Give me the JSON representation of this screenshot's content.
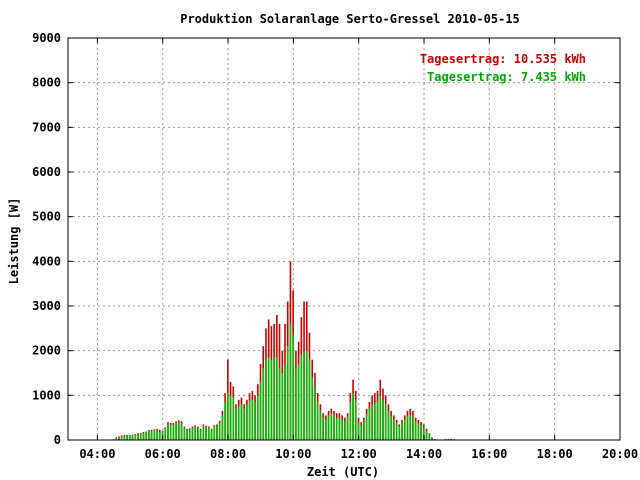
{
  "chart_data": {
    "type": "bar",
    "title": "Produktion Solaranlage Serto-Gressel 2010-05-15",
    "xlabel": "Zeit (UTC)",
    "ylabel": "Leistung [W]",
    "ylim": [
      0,
      9000
    ],
    "xlim_hours": [
      3.1,
      20.0
    ],
    "grid": true,
    "y_ticks": [
      "0",
      "1000",
      "2000",
      "3000",
      "4000",
      "5000",
      "6000",
      "7000",
      "8000",
      "9000"
    ],
    "x_ticks": [
      {
        "hour": 4,
        "label": "04:00"
      },
      {
        "hour": 6,
        "label": "06:00"
      },
      {
        "hour": 8,
        "label": "08:00"
      },
      {
        "hour": 10,
        "label": "10:00"
      },
      {
        "hour": 12,
        "label": "12:00"
      },
      {
        "hour": 14,
        "label": "14:00"
      },
      {
        "hour": 16,
        "label": "16:00"
      },
      {
        "hour": 18,
        "label": "18:00"
      },
      {
        "hour": 20,
        "label": "20:00"
      }
    ],
    "legend_position": "top-right",
    "sample_interval_min": 5,
    "start_time": "04:30",
    "series": [
      {
        "name": "Tagesertrag: 10.535 kWh",
        "color": "#cc0000",
        "values": [
          20,
          60,
          80,
          100,
          110,
          110,
          110,
          120,
          130,
          150,
          160,
          180,
          190,
          220,
          230,
          240,
          250,
          230,
          210,
          280,
          400,
          380,
          380,
          420,
          440,
          420,
          300,
          250,
          260,
          300,
          330,
          300,
          250,
          350,
          320,
          300,
          250,
          330,
          350,
          430,
          650,
          1050,
          1800,
          1300,
          1200,
          800,
          900,
          950,
          800,
          900,
          1050,
          1100,
          1000,
          1250,
          1700,
          2100,
          2500,
          2700,
          2550,
          2600,
          2800,
          2600,
          2000,
          2600,
          3100,
          4000,
          3350,
          2000,
          2200,
          2750,
          3100,
          3100,
          2400,
          1800,
          1500,
          1050,
          800,
          600,
          550,
          650,
          700,
          650,
          600,
          600,
          550,
          500,
          600,
          1050,
          1350,
          1100,
          500,
          400,
          500,
          700,
          850,
          1000,
          1050,
          1100,
          1350,
          1150,
          1000,
          800,
          650,
          550,
          450,
          350,
          450,
          550,
          650,
          700,
          650,
          500,
          450,
          400,
          350,
          250,
          150,
          60,
          20,
          0,
          0,
          0,
          20,
          25,
          25,
          20,
          0
        ]
      },
      {
        "name": "Tagesertrag: 7.435 kWh",
        "color": "#00bb00",
        "values": [
          15,
          45,
          60,
          75,
          85,
          90,
          95,
          105,
          115,
          135,
          145,
          160,
          170,
          200,
          210,
          215,
          225,
          205,
          190,
          255,
          350,
          340,
          340,
          380,
          400,
          380,
          270,
          225,
          235,
          270,
          300,
          270,
          225,
          315,
          290,
          270,
          225,
          300,
          315,
          380,
          550,
          850,
          1050,
          1000,
          950,
          700,
          750,
          800,
          700,
          780,
          880,
          900,
          850,
          1000,
          1300,
          1600,
          1800,
          1850,
          1800,
          1850,
          1850,
          1600,
          1500,
          1700,
          2100,
          2600,
          2350,
          1600,
          1700,
          1900,
          2000,
          2000,
          1800,
          1400,
          1200,
          850,
          650,
          500,
          450,
          550,
          600,
          550,
          500,
          500,
          450,
          420,
          520,
          850,
          1050,
          900,
          400,
          330,
          400,
          580,
          700,
          780,
          820,
          850,
          1000,
          900,
          800,
          650,
          540,
          460,
          380,
          300,
          380,
          460,
          540,
          560,
          520,
          420,
          380,
          330,
          290,
          210,
          130,
          50,
          15,
          0,
          0,
          0,
          15,
          18,
          20,
          15,
          0
        ]
      }
    ]
  }
}
